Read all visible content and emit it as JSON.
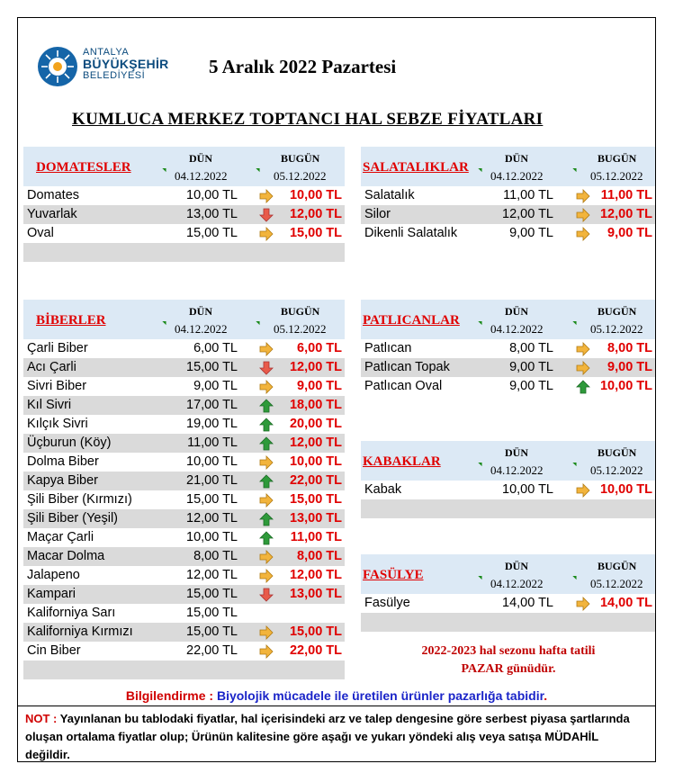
{
  "logo": {
    "line1": "ANTALYA",
    "line2": "BÜYÜKŞEHİR",
    "line3": "BELEDİYESİ"
  },
  "date_title": "5 Aralık 2022 Pazartesi",
  "main_title": "KUMLUCA MERKEZ TOPTANCI HAL SEBZE FİYATLARI",
  "columns": {
    "yesterday": "DÜN",
    "today": "BUGÜN",
    "yesterday_date": "04.12.2022",
    "today_date": "05.12.2022"
  },
  "sections": {
    "domatesler": {
      "name": "DOMATESLER",
      "rows": [
        {
          "name": "Domates",
          "yesterday": "10,00 TL",
          "trend": "same",
          "today": "10,00 TL"
        },
        {
          "name": "Yuvarlak",
          "yesterday": "13,00 TL",
          "trend": "down",
          "today": "12,00 TL"
        },
        {
          "name": "Oval",
          "yesterday": "15,00 TL",
          "trend": "same",
          "today": "15,00 TL"
        }
      ]
    },
    "biberler": {
      "name": "BİBERLER",
      "rows": [
        {
          "name": "Çarli Biber",
          "yesterday": "6,00 TL",
          "trend": "same",
          "today": "6,00 TL"
        },
        {
          "name": "Acı Çarli",
          "yesterday": "15,00 TL",
          "trend": "down",
          "today": "12,00 TL"
        },
        {
          "name": "Sivri Biber",
          "yesterday": "9,00 TL",
          "trend": "same",
          "today": "9,00 TL"
        },
        {
          "name": "Kıl Sivri",
          "yesterday": "17,00 TL",
          "trend": "up",
          "today": "18,00 TL"
        },
        {
          "name": "Kılçık Sivri",
          "yesterday": "19,00 TL",
          "trend": "up",
          "today": "20,00 TL"
        },
        {
          "name": "Üçburun (Köy)",
          "yesterday": "11,00 TL",
          "trend": "up",
          "today": "12,00 TL"
        },
        {
          "name": "Dolma Biber",
          "yesterday": "10,00 TL",
          "trend": "same",
          "today": "10,00 TL"
        },
        {
          "name": "Kapya Biber",
          "yesterday": "21,00 TL",
          "trend": "up",
          "today": "22,00 TL"
        },
        {
          "name": "Şili Biber (Kırmızı)",
          "yesterday": "15,00 TL",
          "trend": "same",
          "today": "15,00 TL"
        },
        {
          "name": "Şili Biber (Yeşil)",
          "yesterday": "12,00 TL",
          "trend": "up",
          "today": "13,00 TL"
        },
        {
          "name": "Maçar Çarli",
          "yesterday": "10,00 TL",
          "trend": "up",
          "today": "11,00 TL"
        },
        {
          "name": "Macar Dolma",
          "yesterday": "8,00 TL",
          "trend": "same",
          "today": "8,00 TL"
        },
        {
          "name": "Jalapeno",
          "yesterday": "12,00 TL",
          "trend": "same",
          "today": "12,00 TL"
        },
        {
          "name": "Kampari",
          "yesterday": "15,00 TL",
          "trend": "down",
          "today": "13,00 TL"
        },
        {
          "name": "Kaliforniya Sarı",
          "yesterday": "15,00 TL",
          "trend": "none",
          "today": ""
        },
        {
          "name": "Kaliforniya Kırmızı",
          "yesterday": "15,00 TL",
          "trend": "same",
          "today": "15,00 TL"
        },
        {
          "name": "Cin Biber",
          "yesterday": "22,00 TL",
          "trend": "same",
          "today": "22,00 TL"
        }
      ]
    },
    "salataliklar": {
      "name": "SALATALIKLAR",
      "rows": [
        {
          "name": "Salatalık",
          "yesterday": "11,00 TL",
          "trend": "same",
          "today": "11,00 TL"
        },
        {
          "name": "Silor",
          "yesterday": "12,00 TL",
          "trend": "same",
          "today": "12,00 TL"
        },
        {
          "name": "Dikenli Salatalık",
          "yesterday": "9,00 TL",
          "trend": "same",
          "today": "9,00 TL"
        }
      ]
    },
    "patlicanlar": {
      "name": "PATLICANLAR",
      "rows": [
        {
          "name": "Patlıcan",
          "yesterday": "8,00 TL",
          "trend": "same",
          "today": "8,00 TL"
        },
        {
          "name": "Patlıcan Topak",
          "yesterday": "9,00 TL",
          "trend": "same",
          "today": "9,00 TL"
        },
        {
          "name": "Patlıcan Oval",
          "yesterday": "9,00 TL",
          "trend": "up",
          "today": "10,00 TL"
        }
      ]
    },
    "kabaklar": {
      "name": "KABAKLAR",
      "rows": [
        {
          "name": "Kabak",
          "yesterday": "10,00 TL",
          "trend": "same",
          "today": "10,00 TL"
        }
      ]
    },
    "fasulye": {
      "name": "FASÜLYE",
      "rows": [
        {
          "name": "Fasülye",
          "yesterday": "14,00 TL",
          "trend": "same",
          "today": "14,00 TL"
        }
      ]
    }
  },
  "season_note": {
    "line1": "2022-2023 hal sezonu hafta tatili",
    "line2": "PAZAR günüdür."
  },
  "info": {
    "label": "Bilgilendirme : ",
    "text": "Biyolojik mücadele ile üretilen ürünler pazarlığa tabidir",
    "end": "."
  },
  "notice": {
    "label": "NOT : ",
    "text": " Yayınlanan bu tablodaki fiyatlar, hal içerisindeki arz ve talep dengesine göre serbest piyasa şartlarında oluşan ortalama fiyatlar olup; Ürünün kalitesine göre aşağı ve yukarı yöndeki alış veya satışa MÜDAHİL değildir."
  },
  "colors": {
    "header_bg": "#dce9f5",
    "gray_row": "#dadada",
    "red": "#e00000",
    "arrow_up": "#2e9a3a",
    "arrow_down": "#e85a4a",
    "arrow_same": "#f2b43c"
  }
}
